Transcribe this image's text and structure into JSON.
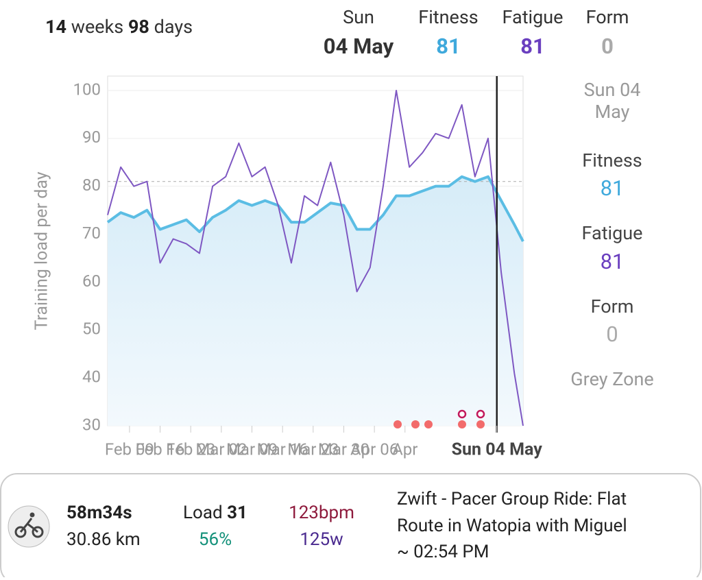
{
  "header": {
    "weeks": 14,
    "weeks_unit": "weeks",
    "days": 98,
    "days_unit": "days",
    "day": "Sun",
    "date": "04 May",
    "fitness_label": "Fitness",
    "fitness": 81,
    "fatigue_label": "Fatigue",
    "fatigue": 81,
    "form_label": "Form",
    "form": 0
  },
  "chart_data": {
    "type": "line",
    "ylabel": "Training load per day",
    "x": [
      "Feb 04",
      "Feb 07",
      "Feb 10",
      "Feb 13",
      "Feb 16",
      "Feb 19",
      "Feb 22",
      "Feb 25",
      "Feb 28",
      "Mar 03",
      "Mar 06",
      "Mar 09",
      "Mar 12",
      "Mar 15",
      "Mar 18",
      "Mar 21",
      "Mar 24",
      "Mar 27",
      "Mar 30",
      "Apr 02",
      "Apr 05",
      "Apr 08",
      "Apr 11",
      "Apr 14",
      "Apr 17",
      "Apr 20",
      "Apr 23",
      "Apr 26",
      "Apr 29",
      "May 02",
      "May 05",
      "May 08",
      "May 10"
    ],
    "series": [
      {
        "name": "Fitness",
        "color": "#5bbde4",
        "values": [
          72.5,
          74.5,
          73.5,
          75,
          71,
          72,
          73,
          70.5,
          73.5,
          75,
          77,
          76,
          77,
          76,
          72.5,
          72.5,
          74.5,
          76.5,
          76,
          71,
          71,
          74,
          78,
          78,
          79,
          80,
          80,
          82,
          81,
          82,
          77,
          72,
          68.5
        ]
      },
      {
        "name": "Fatigue",
        "color": "#7e57c2",
        "values": [
          74,
          84,
          80,
          81,
          64,
          69,
          68,
          66,
          80,
          82,
          89,
          82,
          84,
          76,
          64,
          78,
          76,
          85,
          74,
          58,
          63,
          80,
          100,
          84,
          87,
          91,
          90,
          97,
          82,
          90,
          62,
          41,
          30
        ]
      }
    ],
    "xlim": [
      "Feb 04",
      "May 10"
    ],
    "xticks": [
      {
        "value": "Feb 09",
        "label": "Feb 09"
      },
      {
        "value": "Feb 16",
        "label": "Feb 16"
      },
      {
        "value": "Feb 23",
        "label": "Feb 23"
      },
      {
        "value": "Mar 02",
        "label": "Mar 02"
      },
      {
        "value": "Mar 09",
        "label": "Mar 09"
      },
      {
        "value": "Mar 16",
        "label": "Mar 16"
      },
      {
        "value": "Mar 23",
        "label": "Mar 23"
      },
      {
        "value": "Mar 30",
        "label": "Mar 30"
      },
      {
        "value": "Apr 06",
        "label": "Apr 06"
      },
      {
        "value": "Apr 13",
        "label": "Apr"
      },
      {
        "value": "May 04",
        "label": "Sun 04 May"
      }
    ],
    "cursor": "May 04",
    "reference": 81,
    "ylim": [
      30,
      103
    ],
    "yticks": [
      30,
      40,
      50,
      60,
      70,
      80,
      90,
      100
    ],
    "grid": true
  },
  "side": {
    "date": "Sun 04",
    "month": "May",
    "fitness_label": "Fitness",
    "fitness": 81,
    "fatigue_label": "Fatigue",
    "fatigue": 81,
    "form_label": "Form",
    "form": 0,
    "zone": "Grey Zone"
  },
  "activity": {
    "duration": "58m34s",
    "distance": "30.86 km",
    "load_label": "Load",
    "load": 31,
    "intensity": "56%",
    "heart_rate": "123bpm",
    "power": "125w",
    "title_line1": "Zwift - Pacer Group Ride: Flat",
    "title_line2": "Route in Watopia with Miguel",
    "time": "~ 02:54 PM"
  }
}
